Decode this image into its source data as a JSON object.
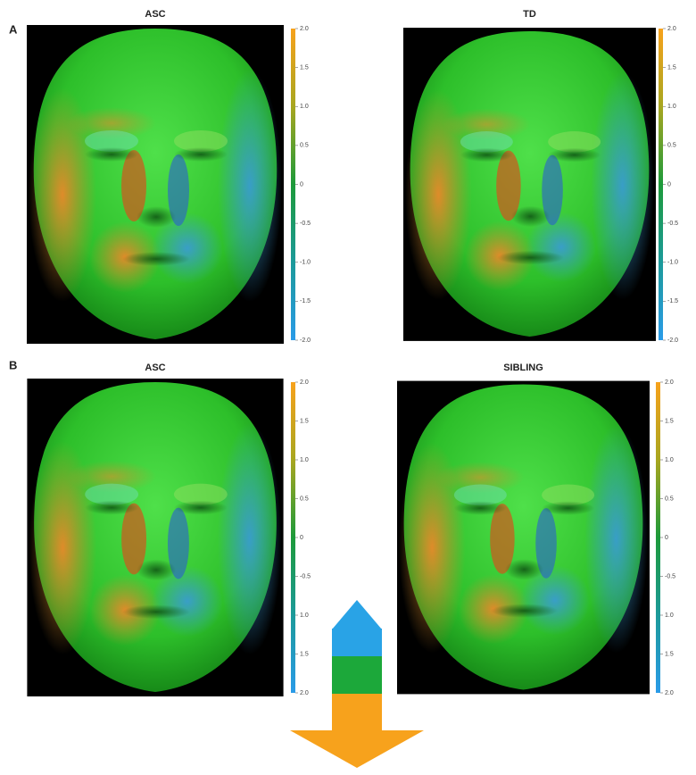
{
  "rows": [
    {
      "label": "A",
      "panels": [
        {
          "title": "ASC",
          "colorbar_ticks": [
            "2.0",
            "1.5",
            "1.0",
            "0.5",
            "0",
            "-0.5",
            "-1.0",
            "-1.5",
            "-2.0"
          ]
        },
        {
          "title": "TD",
          "colorbar_ticks": [
            "2.0",
            "1.5",
            "1.0",
            "0.5",
            "0",
            "-0.5",
            "-1.0",
            "-1.5",
            "-2.0"
          ]
        }
      ]
    },
    {
      "label": "B",
      "panels": [
        {
          "title": "ASC",
          "colorbar_ticks": [
            "2.0",
            "1.5",
            "1.0",
            "0.5",
            "0",
            "-0.5",
            "1.0",
            "1.5",
            "2.0"
          ]
        },
        {
          "title": "SIBLING",
          "colorbar_ticks": [
            "2.0",
            "1.5",
            "1.0",
            "0.5",
            "0",
            "-0.5",
            "1.0",
            "1.5",
            "2.0"
          ]
        }
      ]
    }
  ]
}
